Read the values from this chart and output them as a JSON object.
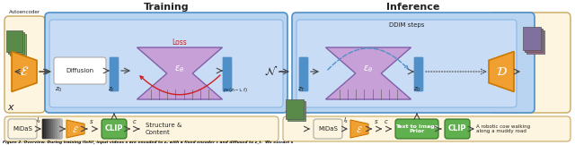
{
  "bg_color": "#ffffff",
  "training_label": "Training",
  "inference_label": "Inference",
  "caption": "Figure 2. Overview. During training (left), input videos x are encoded to z₀ with a fixed encoder ε and diffused to z_t.  We extract s",
  "orange": "#F0A030",
  "blue_light": "#B8D4F0",
  "blue_med": "#8BB8E8",
  "blue_dark": "#5090C8",
  "blue_inner": "#C8DCF5",
  "purple_fill": "#C8A0D8",
  "purple_edge": "#8060A8",
  "yellow_fill": "#F0E060",
  "yellow_edge": "#C8B800",
  "cream": "#FDF5E0",
  "cream_edge": "#C8A860",
  "green_fill": "#60B050",
  "green_edge": "#307020",
  "white": "#FFFFFF",
  "gray": "#888888",
  "red": "#CC2020",
  "text": "#222222",
  "arrow": "#444444"
}
